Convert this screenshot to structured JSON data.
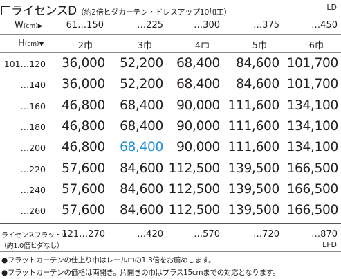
{
  "title": {
    "main": "ライセンスD",
    "sub": "（約2倍ヒダカーテン・ドレスアップ10加工）",
    "code": "LD"
  },
  "header": {
    "width_label": "W",
    "width_unit": "(cm)",
    "width_arrow": "▶",
    "height_label": "H",
    "height_unit": "(cm)",
    "height_arrow": "▼",
    "width_ranges": [
      "61…150",
      "…225",
      "…300",
      "…375",
      "…450"
    ],
    "sizes": [
      "2巾",
      "3巾",
      "4巾",
      "5巾",
      "6巾"
    ]
  },
  "rows": [
    {
      "height": "101…120",
      "prices": [
        "36,000",
        "52,200",
        "68,400",
        "84,600",
        "101,700"
      ]
    },
    {
      "height": "…140",
      "prices": [
        "36,000",
        "52,200",
        "68,400",
        "84,600",
        "101,700"
      ]
    },
    {
      "height": "…160",
      "prices": [
        "46,800",
        "68,400",
        "90,000",
        "111,600",
        "134,100"
      ]
    },
    {
      "height": "…180",
      "prices": [
        "46,800",
        "68,400",
        "90,000",
        "111,600",
        "134,100"
      ]
    },
    {
      "height": "…200",
      "prices": [
        "46,800",
        "68,400",
        "90,000",
        "111,600",
        "134,100"
      ]
    },
    {
      "height": "…220",
      "prices": [
        "57,600",
        "84,600",
        "112,500",
        "139,500",
        "166,500"
      ]
    },
    {
      "height": "…240",
      "prices": [
        "57,600",
        "84,600",
        "112,500",
        "139,500",
        "166,500"
      ]
    },
    {
      "height": "…260",
      "prices": [
        "57,600",
        "84,600",
        "112,500",
        "139,500",
        "166,500"
      ]
    }
  ],
  "highlight_color": "#1e90d8",
  "flat": {
    "label_1": "ライセンスフラットD",
    "label_2": "（約1.0倍ヒダなし）",
    "ranges": [
      "121…270",
      "…420",
      "…570",
      "…720",
      "…870"
    ],
    "code": "LFD"
  },
  "notes": [
    "●フラットカーテンの仕上り巾はレール巾の1.3倍をお薦めします。",
    "●フラットカーテンの価格は両開き。片開きの巾はプラス15cmまでの対応となります。"
  ]
}
